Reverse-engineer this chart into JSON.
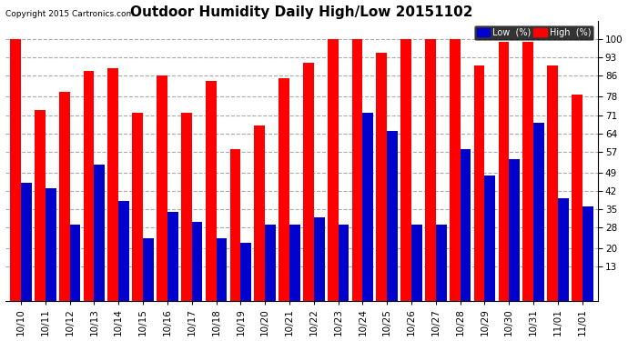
{
  "title": "Outdoor Humidity Daily High/Low 20151102",
  "copyright": "Copyright 2015 Cartronics.com",
  "dates": [
    "10/10",
    "10/11",
    "10/12",
    "10/13",
    "10/14",
    "10/15",
    "10/16",
    "10/17",
    "10/18",
    "10/19",
    "10/20",
    "10/21",
    "10/22",
    "10/23",
    "10/24",
    "10/25",
    "10/26",
    "10/27",
    "10/28",
    "10/29",
    "10/30",
    "10/31",
    "11/01",
    "11/01"
  ],
  "high": [
    100,
    73,
    80,
    88,
    89,
    72,
    86,
    72,
    84,
    58,
    67,
    85,
    91,
    100,
    100,
    95,
    100,
    100,
    100,
    90,
    99,
    99,
    90,
    79
  ],
  "low": [
    45,
    43,
    29,
    52,
    38,
    24,
    34,
    30,
    24,
    22,
    29,
    29,
    32,
    29,
    72,
    65,
    29,
    29,
    58,
    48,
    54,
    68,
    39,
    36
  ],
  "high_color": "#ff0000",
  "low_color": "#0000cc",
  "bg_color": "#ffffff",
  "grid_color": "#aaaaaa",
  "ylim": [
    0,
    107
  ],
  "yticks": [
    13,
    20,
    28,
    35,
    42,
    49,
    57,
    64,
    71,
    78,
    86,
    93,
    100
  ],
  "bar_width": 0.44,
  "title_fontsize": 11,
  "tick_fontsize": 7.5,
  "legend_low_label": "Low  (%)",
  "legend_high_label": "High  (%)"
}
